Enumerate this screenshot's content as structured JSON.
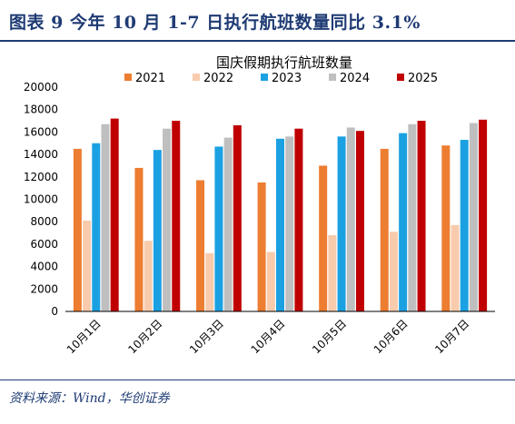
{
  "header": {
    "title": "图表 9   今年 10 月 1-7 日执行航班数量同比 3.1%"
  },
  "source": "资料来源：Wind，华创证券",
  "chart_data": {
    "type": "bar",
    "title": "国庆假期执行航班数量",
    "xlabel": "",
    "ylabel": "",
    "categories": [
      "10月1日",
      "10月2日",
      "10月3日",
      "10月4日",
      "10月5日",
      "10月6日",
      "10月7日"
    ],
    "ylim": [
      0,
      20000
    ],
    "yticks": [
      0,
      2000,
      4000,
      6000,
      8000,
      10000,
      12000,
      14000,
      16000,
      18000,
      20000
    ],
    "grid": false,
    "legend_position": "top",
    "series": [
      {
        "name": "2021",
        "color": "#ed7d31",
        "values": [
          14500,
          12800,
          11700,
          11500,
          13000,
          14500,
          14800
        ]
      },
      {
        "name": "2022",
        "color": "#f8cbad",
        "values": [
          8100,
          6300,
          5200,
          5300,
          6800,
          7100,
          7700
        ]
      },
      {
        "name": "2023",
        "color": "#1ba1e2",
        "values": [
          15000,
          14400,
          14700,
          15400,
          15600,
          15900,
          15300
        ]
      },
      {
        "name": "2024",
        "color": "#bfbfbf",
        "values": [
          16700,
          16300,
          15500,
          15600,
          16400,
          16700,
          16800
        ]
      },
      {
        "name": "2025",
        "color": "#c00000",
        "values": [
          17200,
          17000,
          16600,
          16300,
          16100,
          17000,
          17100
        ]
      }
    ]
  }
}
